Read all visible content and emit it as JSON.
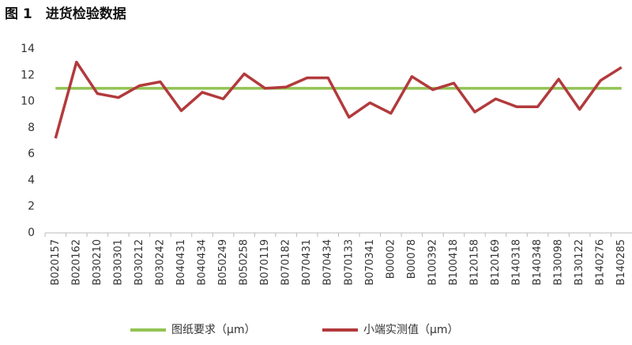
{
  "chart_data": {
    "type": "line",
    "title": "图 1　进货检验数据",
    "categories": [
      "B020157",
      "B020162",
      "B030210",
      "B030301",
      "B030212",
      "B030242",
      "B040431",
      "B040434",
      "B050249",
      "B050258",
      "B070119",
      "B070182",
      "B070431",
      "B070434",
      "B070133",
      "B070341",
      "B00002",
      "B00078",
      "B100392",
      "B100418",
      "B120158",
      "B120169",
      "B140318",
      "B140348",
      "B130098",
      "B130122",
      "B140276",
      "B140285"
    ],
    "series": [
      {
        "name": "图纸要求（μm）",
        "color": "#92c353",
        "values": [
          11,
          11,
          11,
          11,
          11,
          11,
          11,
          11,
          11,
          11,
          11,
          11,
          11,
          11,
          11,
          11,
          11,
          11,
          11,
          11,
          11,
          11,
          11,
          11,
          11,
          11,
          11,
          11
        ]
      },
      {
        "name": "小端实测值（μm）",
        "color": "#b23a3c",
        "values": [
          7.2,
          13.0,
          10.6,
          10.3,
          11.2,
          11.5,
          9.3,
          10.7,
          10.2,
          12.1,
          11.0,
          11.1,
          11.8,
          11.8,
          8.8,
          9.9,
          9.1,
          11.9,
          10.9,
          11.4,
          9.2,
          10.2,
          9.6,
          9.6,
          11.7,
          9.4,
          11.6,
          12.6
        ]
      }
    ],
    "ylim": [
      0,
      14
    ],
    "yticks": [
      0,
      2,
      4,
      6,
      8,
      10,
      12,
      14
    ],
    "grid": false
  }
}
